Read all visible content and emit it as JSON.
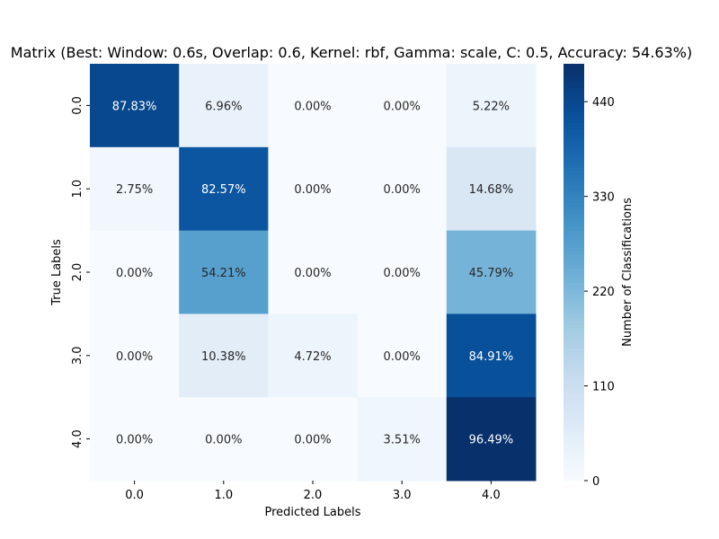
{
  "chart_data": {
    "type": "heatmap",
    "title": "Matrix (Best: Window: 0.6s, Overlap: 0.6, Kernel: rbf, Gamma: scale, C: 0.5, Accuracy: 54.63%)",
    "xlabel": "Predicted Labels",
    "ylabel": "True Labels",
    "x_categories": [
      "0.0",
      "1.0",
      "2.0",
      "3.0",
      "4.0"
    ],
    "y_categories": [
      "0.0",
      "1.0",
      "2.0",
      "3.0",
      "4.0"
    ],
    "annotations": [
      [
        "87.83%",
        "6.96%",
        "0.00%",
        "0.00%",
        "5.22%"
      ],
      [
        "2.75%",
        "82.57%",
        "0.00%",
        "0.00%",
        "14.68%"
      ],
      [
        "0.00%",
        "54.21%",
        "0.00%",
        "0.00%",
        "45.79%"
      ],
      [
        "0.00%",
        "10.38%",
        "4.72%",
        "0.00%",
        "84.91%"
      ],
      [
        "0.00%",
        "0.00%",
        "0.00%",
        "3.51%",
        "96.49%"
      ]
    ],
    "values": [
      [
        440,
        35,
        0,
        0,
        26
      ],
      [
        14,
        415,
        0,
        0,
        74
      ],
      [
        0,
        272,
        0,
        0,
        230
      ],
      [
        0,
        52,
        24,
        0,
        426
      ],
      [
        0,
        0,
        0,
        18,
        484
      ]
    ],
    "colorbar": {
      "label": "Number of Classifications",
      "min": 0,
      "max": 484,
      "ticks": [
        0,
        110,
        220,
        330,
        440
      ],
      "colormap": "Blues"
    }
  }
}
